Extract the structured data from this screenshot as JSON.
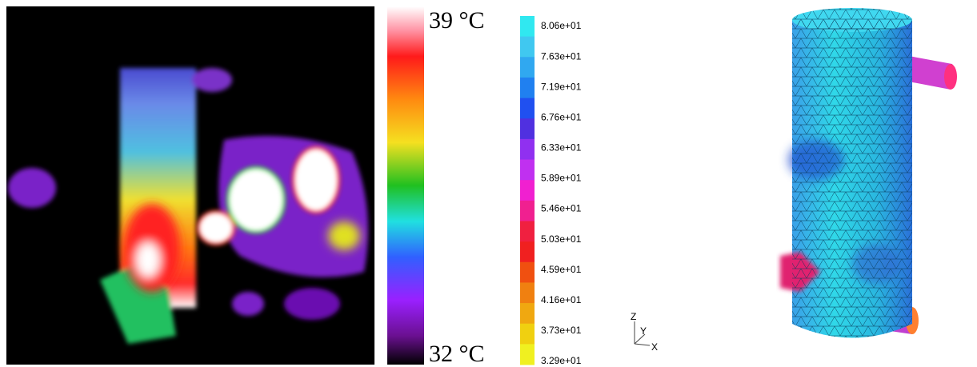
{
  "thermal_scale": {
    "max_label": "39 °C",
    "min_label": "32 °C"
  },
  "simulation_scale": {
    "labels": [
      "8.06e+01",
      "7.63e+01",
      "7.19e+01",
      "6.76e+01",
      "6.33e+01",
      "5.89e+01",
      "5.46e+01",
      "5.03e+01",
      "4.59e+01",
      "4.16e+01",
      "3.73e+01",
      "3.29e+01"
    ]
  },
  "axes_triad": {
    "z": "Z",
    "y": "Y",
    "x": "X"
  }
}
